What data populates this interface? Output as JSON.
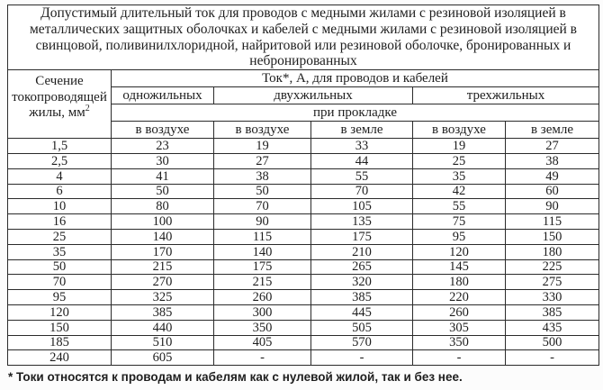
{
  "title_lines": [
    "Допустимый длительный ток для проводов с медными жилами с резиновой изоляцией в",
    "металлических защитных оболочках и кабелей с медными жилами с резиновой изоляцией в",
    "свинцовой, поливинилхлоридной, найритовой или резиновой оболочке, бронированных и",
    "небронированных"
  ],
  "header": {
    "section_label": "Сечение токопроводящей жилы, мм",
    "section_sup": "2",
    "current_label": "Ток*, А, для проводов и кабелей",
    "groups": [
      "одножильных",
      "двухжильных",
      "трехжильных"
    ],
    "laying_label": "при прокладке",
    "columns": [
      "в воздухе",
      "в воздухе",
      "в земле",
      "в воздухе",
      "в земле"
    ]
  },
  "rows": [
    {
      "section": "1,5",
      "values": [
        "23",
        "19",
        "33",
        "19",
        "27"
      ]
    },
    {
      "section": "2,5",
      "values": [
        "30",
        "27",
        "44",
        "25",
        "38"
      ]
    },
    {
      "section": "4",
      "values": [
        "41",
        "38",
        "55",
        "35",
        "49"
      ]
    },
    {
      "section": "6",
      "values": [
        "50",
        "50",
        "70",
        "42",
        "60"
      ]
    },
    {
      "section": "10",
      "values": [
        "80",
        "70",
        "105",
        "55",
        "90"
      ]
    },
    {
      "section": "16",
      "values": [
        "100",
        "90",
        "135",
        "75",
        "115"
      ]
    },
    {
      "section": "25",
      "values": [
        "140",
        "115",
        "175",
        "95",
        "150"
      ]
    },
    {
      "section": "35",
      "values": [
        "170",
        "140",
        "210",
        "120",
        "180"
      ]
    },
    {
      "section": "50",
      "values": [
        "215",
        "175",
        "265",
        "145",
        "225"
      ]
    },
    {
      "section": "70",
      "values": [
        "270",
        "215",
        "320",
        "180",
        "275"
      ]
    },
    {
      "section": "95",
      "values": [
        "325",
        "260",
        "385",
        "220",
        "330"
      ]
    },
    {
      "section": "120",
      "values": [
        "385",
        "300",
        "445",
        "260",
        "385"
      ]
    },
    {
      "section": "150",
      "values": [
        "440",
        "350",
        "505",
        "305",
        "435"
      ]
    },
    {
      "section": "185",
      "values": [
        "510",
        "405",
        "570",
        "350",
        "500"
      ]
    },
    {
      "section": "240",
      "values": [
        "605",
        "-",
        "-",
        "-",
        "-"
      ]
    }
  ],
  "footnote": "* Токи относятся к проводам и кабелям как с нулевой жилой, так и без нее.",
  "colors": {
    "border": "#2b2b2b",
    "text": "#1e1e1e",
    "page_bg": "#fcfcfc",
    "table_bg": "#ffffff"
  }
}
